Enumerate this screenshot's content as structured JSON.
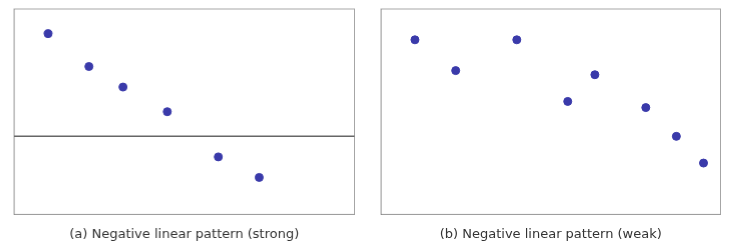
{
  "chart_data": [
    {
      "type": "scatter",
      "xlabel": "(a) Negative linear pattern (strong)",
      "x": [
        0.1,
        0.22,
        0.32,
        0.45,
        0.6,
        0.72
      ],
      "y": [
        0.88,
        0.72,
        0.62,
        0.5,
        0.28,
        0.18
      ],
      "color": "#3a3aaa",
      "xlim": [
        0,
        1
      ],
      "ylim": [
        0,
        1
      ],
      "xticks": [],
      "yticks": [],
      "tick_labels": false,
      "grid": false,
      "hline_y": 0.38
    },
    {
      "type": "scatter",
      "xlabel": "(b) Negative linear pattern (weak)",
      "x": [
        0.1,
        0.22,
        0.4,
        0.55,
        0.63,
        0.78,
        0.87,
        0.95
      ],
      "y": [
        0.85,
        0.7,
        0.85,
        0.55,
        0.68,
        0.52,
        0.38,
        0.25
      ],
      "color": "#3a3aaa",
      "xlim": [
        0,
        1
      ],
      "ylim": [
        0,
        1
      ],
      "xticks": [],
      "yticks": [],
      "tick_labels": false,
      "grid": false
    }
  ]
}
